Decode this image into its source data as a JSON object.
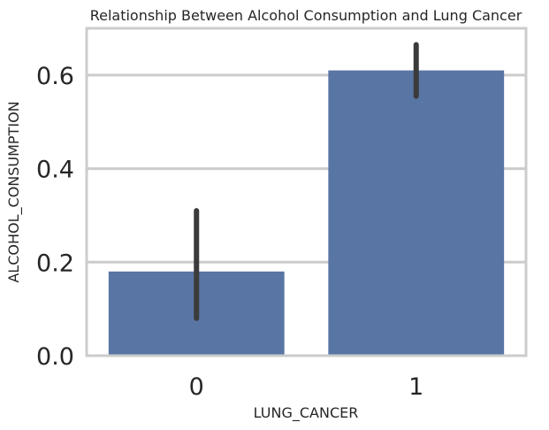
{
  "chart_data": {
    "type": "bar",
    "title": "Relationship Between Alcohol Consumption and Lung Cancer",
    "xlabel": "LUNG_CANCER",
    "ylabel": "ALCOHOL_CONSUMPTION",
    "categories": [
      "0",
      "1"
    ],
    "values": [
      0.18,
      0.61
    ],
    "error_bars": [
      [
        0.08,
        0.31
      ],
      [
        0.555,
        0.665
      ]
    ],
    "ylim": [
      0,
      0.7
    ],
    "yticks": [
      0.0,
      0.2,
      0.4,
      0.6
    ],
    "ytick_labels": [
      "0.0",
      "0.2",
      "0.4",
      "0.6"
    ],
    "grid": "horizontal",
    "colors": {
      "bar": "#5875a4",
      "error_bar": "#3b3b3b",
      "grid": "#cccccc",
      "spine": "#cccccc",
      "text": "#262626"
    }
  }
}
